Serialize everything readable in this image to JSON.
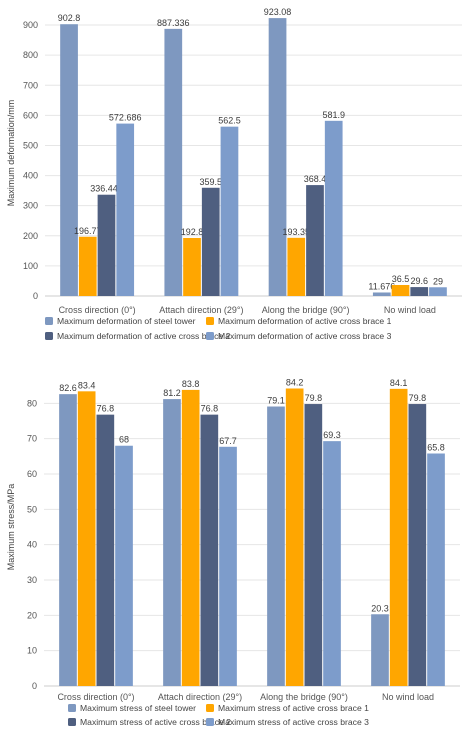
{
  "colors": {
    "series": [
      "#7e98c0",
      "#ffa600",
      "#4f5f80",
      "#7d9ccb"
    ]
  },
  "chart_data": [
    {
      "type": "bar",
      "ylabel": "Maximum deformation/mm",
      "ylim": [
        0,
        950
      ],
      "yticks": [
        0,
        100,
        200,
        300,
        400,
        500,
        600,
        700,
        800,
        900
      ],
      "grid": true,
      "legend_position": "bottom",
      "categories": [
        "Cross direction (0°)",
        "Attach direction (29°)",
        "Along the bridge (90°)",
        "No wind load"
      ],
      "series": [
        {
          "name": "Maximum deformation of steel tower",
          "values": [
            902.8,
            887.336,
            923.08,
            11.676
          ],
          "labels": [
            "902.8",
            "887.336",
            "923.08",
            "11.676"
          ]
        },
        {
          "name": "Maximum deformation of active cross brace 1",
          "values": [
            196.77,
            192.8,
            193.35,
            36.5
          ],
          "labels": [
            "196.77",
            "192.8",
            "193.35",
            "36.5"
          ]
        },
        {
          "name": "Maximum deformation of active cross brace 2",
          "values": [
            336.447,
            359.5,
            368.4,
            29.6
          ],
          "labels": [
            "336.447",
            "359.5",
            "368.4",
            "29.6"
          ]
        },
        {
          "name": "Maximum deformation of active cross brace 3",
          "values": [
            572.686,
            562.5,
            581.9,
            29
          ],
          "labels": [
            "572.686",
            "562.5",
            "581.9",
            "29"
          ]
        }
      ]
    },
    {
      "type": "bar",
      "ylabel": "Maximum stress/MPa",
      "ylim": [
        0,
        90
      ],
      "yticks": [
        0,
        10,
        20,
        30,
        40,
        50,
        60,
        70,
        80
      ],
      "grid": true,
      "legend_position": "bottom",
      "categories": [
        "Cross direction (0°)",
        "Attach direction (29°)",
        "Along the bridge (90°)",
        "No wind load"
      ],
      "series": [
        {
          "name": "Maximum stress of steel tower",
          "values": [
            82.6,
            81.2,
            79.1,
            20.3
          ],
          "labels": [
            "82.6",
            "81.2",
            "79.1",
            "20.3"
          ]
        },
        {
          "name": "Maximum stress of active cross brace 1",
          "values": [
            83.4,
            83.8,
            84.2,
            84.1
          ],
          "labels": [
            "83.4",
            "83.8",
            "84.2",
            "84.1"
          ]
        },
        {
          "name": "Maximum stress of active cross brace 2",
          "values": [
            76.8,
            76.8,
            79.8,
            79.8
          ],
          "labels": [
            "76.8",
            "76.8",
            "79.8",
            "79.8"
          ]
        },
        {
          "name": "Maximum stress of active cross brace 3",
          "values": [
            68,
            67.7,
            69.3,
            65.8
          ],
          "labels": [
            "68",
            "67.7",
            "69.3",
            "65.8"
          ]
        }
      ]
    }
  ]
}
